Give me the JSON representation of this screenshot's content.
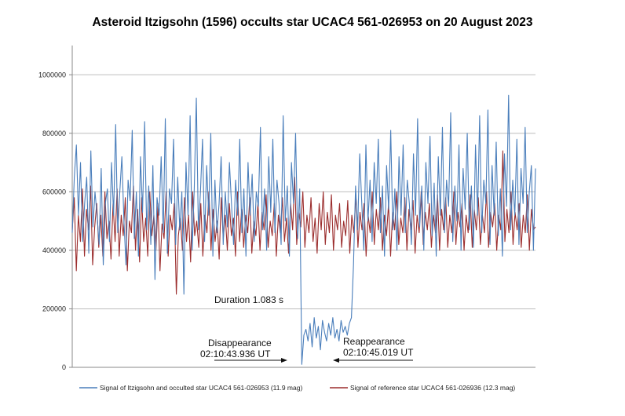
{
  "chart_data": {
    "type": "line",
    "title": "Asteroid Itzigsohn (1596) occults star UCAC4 561-026953 on 20 August 2023",
    "xlabel": "",
    "ylabel": "",
    "ylim": [
      0,
      1100000
    ],
    "yticks": [
      0,
      200000,
      400000,
      600000,
      800000,
      1000000
    ],
    "ytick_labels": [
      "0",
      "200000",
      "400000",
      "600000",
      "800000",
      "1000000"
    ],
    "grid": true,
    "legend_position": "bottom",
    "series": [
      {
        "name": "Signal of Itzigsohn and occulted star UCAC4 561-026953 (11.9 mag)",
        "color": "#4a7ebb",
        "values": [
          460000,
          650000,
          760000,
          520000,
          700000,
          430000,
          560000,
          650000,
          390000,
          740000,
          480000,
          600000,
          520000,
          420000,
          680000,
          350000,
          560000,
          610000,
          430000,
          700000,
          520000,
          830000,
          460000,
          600000,
          720000,
          500000,
          350000,
          640000,
          570000,
          810000,
          440000,
          600000,
          380000,
          720000,
          530000,
          840000,
          470000,
          620000,
          420000,
          690000,
          300000,
          580000,
          520000,
          720000,
          460000,
          850000,
          390000,
          610000,
          560000,
          780000,
          420000,
          650000,
          470000,
          600000,
          250000,
          700000,
          520000,
          860000,
          400000,
          610000,
          920000,
          470000,
          600000,
          780000,
          430000,
          690000,
          520000,
          800000,
          380000,
          640000,
          460000,
          560000,
          720000,
          420000,
          600000,
          480000,
          700000,
          560000,
          420000,
          640000,
          520000,
          780000,
          460000,
          610000,
          380000,
          700000,
          520000,
          660000,
          430000,
          600000,
          550000,
          820000,
          470000,
          610000,
          400000,
          720000,
          530000,
          780000,
          460000,
          640000,
          560000,
          420000,
          860000,
          500000,
          620000,
          380000,
          700000,
          560000,
          800000,
          440000,
          610000,
          10000,
          110000,
          130000,
          90000,
          150000,
          70000,
          170000,
          100000,
          140000,
          60000,
          160000,
          120000,
          90000,
          150000,
          110000,
          170000,
          100000,
          130000,
          90000,
          160000,
          120000,
          140000,
          110000,
          150000,
          170000,
          350000,
          620000,
          470000,
          730000,
          560000,
          400000,
          760000,
          500000,
          640000,
          430000,
          700000,
          560000,
          780000,
          460000,
          620000,
          380000,
          690000,
          540000,
          810000,
          470000,
          610000,
          400000,
          720000,
          520000,
          760000,
          460000,
          640000,
          560000,
          420000,
          730000,
          520000,
          850000,
          480000,
          620000,
          400000,
          700000,
          560000,
          790000,
          450000,
          630000,
          380000,
          720000,
          520000,
          820000,
          460000,
          640000,
          550000,
          870000,
          430000,
          620000,
          500000,
          760000,
          400000,
          680000,
          540000,
          800000,
          470000,
          620000,
          410000,
          760000,
          520000,
          860000,
          460000,
          640000,
          560000,
          880000,
          420000,
          690000,
          520000,
          770000,
          450000,
          610000,
          380000,
          730000,
          550000,
          930000,
          470000,
          640000,
          520000,
          780000,
          420000,
          680000,
          560000,
          820000,
          460000,
          600000,
          690000,
          400000,
          680000
        ]
      },
      {
        "name": "Signal of reference star UCAC4 561-026936 (12.3 mag)",
        "color": "#9b2d2d",
        "values": [
          470000,
          580000,
          330000,
          520000,
          430000,
          610000,
          380000,
          540000,
          470000,
          620000,
          350000,
          480000,
          560000,
          410000,
          520000,
          380000,
          600000,
          440000,
          500000,
          370000,
          560000,
          430000,
          610000,
          380000,
          520000,
          450000,
          580000,
          330000,
          500000,
          460000,
          620000,
          400000,
          540000,
          360000,
          580000,
          430000,
          510000,
          380000,
          600000,
          450000,
          520000,
          400000,
          560000,
          330000,
          490000,
          440000,
          600000,
          380000,
          520000,
          470000,
          560000,
          250000,
          450000,
          510000,
          400000,
          580000,
          430000,
          520000,
          360000,
          600000,
          450000,
          500000,
          410000,
          560000,
          380000,
          520000,
          460000,
          600000,
          400000,
          540000,
          430000,
          500000,
          370000,
          580000,
          440000,
          520000,
          400000,
          560000,
          450000,
          510000,
          380000,
          600000,
          430000,
          540000,
          410000,
          520000,
          460000,
          580000,
          390000,
          500000,
          450000,
          560000,
          400000,
          530000,
          470000,
          590000,
          410000,
          500000,
          450000,
          560000,
          380000,
          520000,
          460000,
          580000,
          430000,
          510000,
          390000,
          560000,
          470000,
          650000,
          420000,
          530000,
          480000,
          600000,
          410000,
          520000,
          460000,
          580000,
          430000,
          510000,
          390000,
          560000,
          470000,
          600000,
          420000,
          530000,
          460000,
          590000,
          400000,
          520000,
          470000,
          560000,
          410000,
          500000,
          450000,
          570000,
          390000,
          520000,
          460000,
          590000,
          410000,
          530000,
          470000,
          560000,
          380000,
          520000,
          460000,
          600000,
          420000,
          540000,
          470000,
          580000,
          400000,
          520000,
          450000,
          560000,
          380000,
          530000,
          470000,
          600000,
          420000,
          510000,
          460000,
          580000,
          400000,
          540000,
          470000,
          570000,
          390000,
          520000,
          460000,
          600000,
          420000,
          530000,
          470000,
          560000,
          410000,
          520000,
          460000,
          590000,
          400000,
          540000,
          470000,
          580000,
          410000,
          520000,
          460000,
          600000,
          420000,
          530000,
          480000,
          560000,
          400000,
          520000,
          460000,
          590000,
          410000,
          540000,
          470000,
          580000,
          420000,
          520000,
          460000,
          600000,
          410000,
          530000,
          480000,
          560000,
          400000,
          520000,
          470000,
          740000,
          430000,
          540000,
          460000,
          600000,
          420000,
          530000,
          470000,
          560000,
          410000,
          520000,
          460000,
          590000,
          400000,
          540000,
          470000,
          480000
        ]
      }
    ],
    "annotations": {
      "duration": "Duration 1.083 s",
      "disappearance_label": "Disappearance",
      "disappearance_time": "02:10:43.936 UT",
      "reappearance_label": "Reappearance",
      "reappearance_time": "02:10:45.019 UT"
    }
  },
  "colors": {
    "series1": "#4a7ebb",
    "series2": "#9b2d2d",
    "grid": "#bdbdbd",
    "axis": "#888888"
  }
}
